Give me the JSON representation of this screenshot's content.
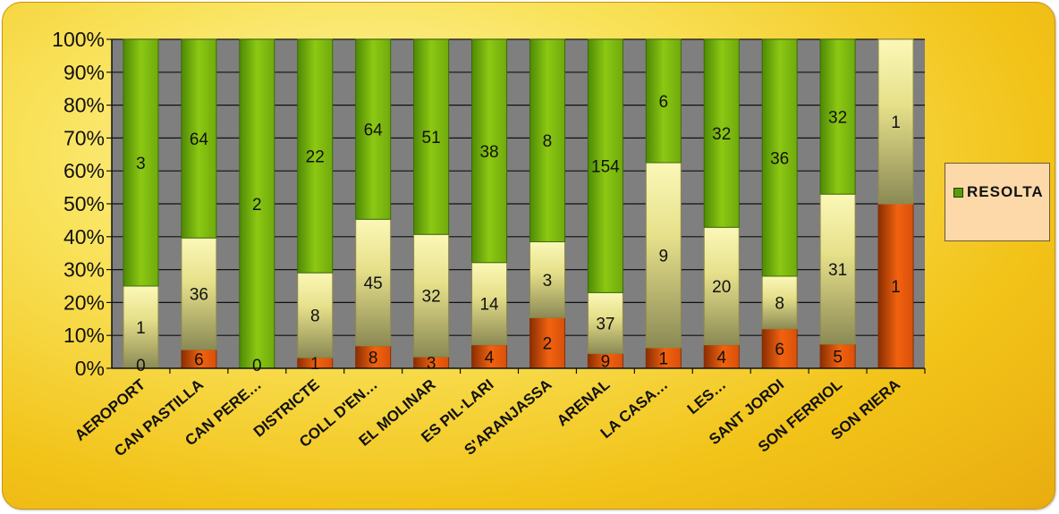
{
  "chart_data": {
    "type": "bar",
    "stacked": "percent",
    "categories": [
      "AEROPORT",
      "CAN PASTILLA",
      "CAN PERE…",
      "DISTRICTE",
      "COLL D'EN…",
      "EL MOLINAR",
      "ES PIL·LARI",
      "S'ARANJASSA",
      "ARENAL",
      "LA CASA…",
      "LES…",
      "SANT JORDI",
      "SON FERRIOL",
      "SON RIERA"
    ],
    "series": [
      {
        "values": [
          0,
          6,
          0,
          1,
          8,
          3,
          4,
          2,
          9,
          1,
          4,
          6,
          5,
          1
        ]
      },
      {
        "values": [
          1,
          36,
          null,
          8,
          45,
          32,
          14,
          3,
          37,
          9,
          20,
          8,
          31,
          1
        ]
      },
      {
        "name": "RESOLTA",
        "values": [
          3,
          64,
          2,
          22,
          64,
          51,
          38,
          8,
          154,
          6,
          32,
          36,
          32,
          null
        ]
      }
    ],
    "data_labels": [
      [
        "0",
        "6",
        "0",
        "1",
        "8",
        "3",
        "4",
        "2",
        "9",
        "1",
        "4",
        "6",
        "5",
        "1"
      ],
      [
        "1",
        "36",
        "",
        "8",
        "45",
        "32",
        "14",
        "3",
        "37",
        "9",
        "20",
        "8",
        "31",
        "1"
      ],
      [
        "3",
        "64",
        "2",
        "22",
        "64",
        "51",
        "38",
        "8",
        "154",
        "6",
        "32",
        "36",
        "32",
        ""
      ]
    ],
    "y_ticks": [
      "0%",
      "10%",
      "20%",
      "30%",
      "40%",
      "50%",
      "60%",
      "70%",
      "80%",
      "90%",
      "100%"
    ],
    "ylim": [
      0,
      100
    ],
    "grid": true,
    "legend": {
      "entries": [
        "RESOLTA"
      ],
      "position": "right"
    },
    "colors": {
      "series": [
        "#e2560a",
        "#f6f08a",
        "#7cbb0c"
      ],
      "series_dark": [
        "#8a2e02",
        "#8d8a4a",
        "#3d6b05"
      ],
      "plot_background": "#7f7f7f",
      "grid": "#111111"
    }
  }
}
